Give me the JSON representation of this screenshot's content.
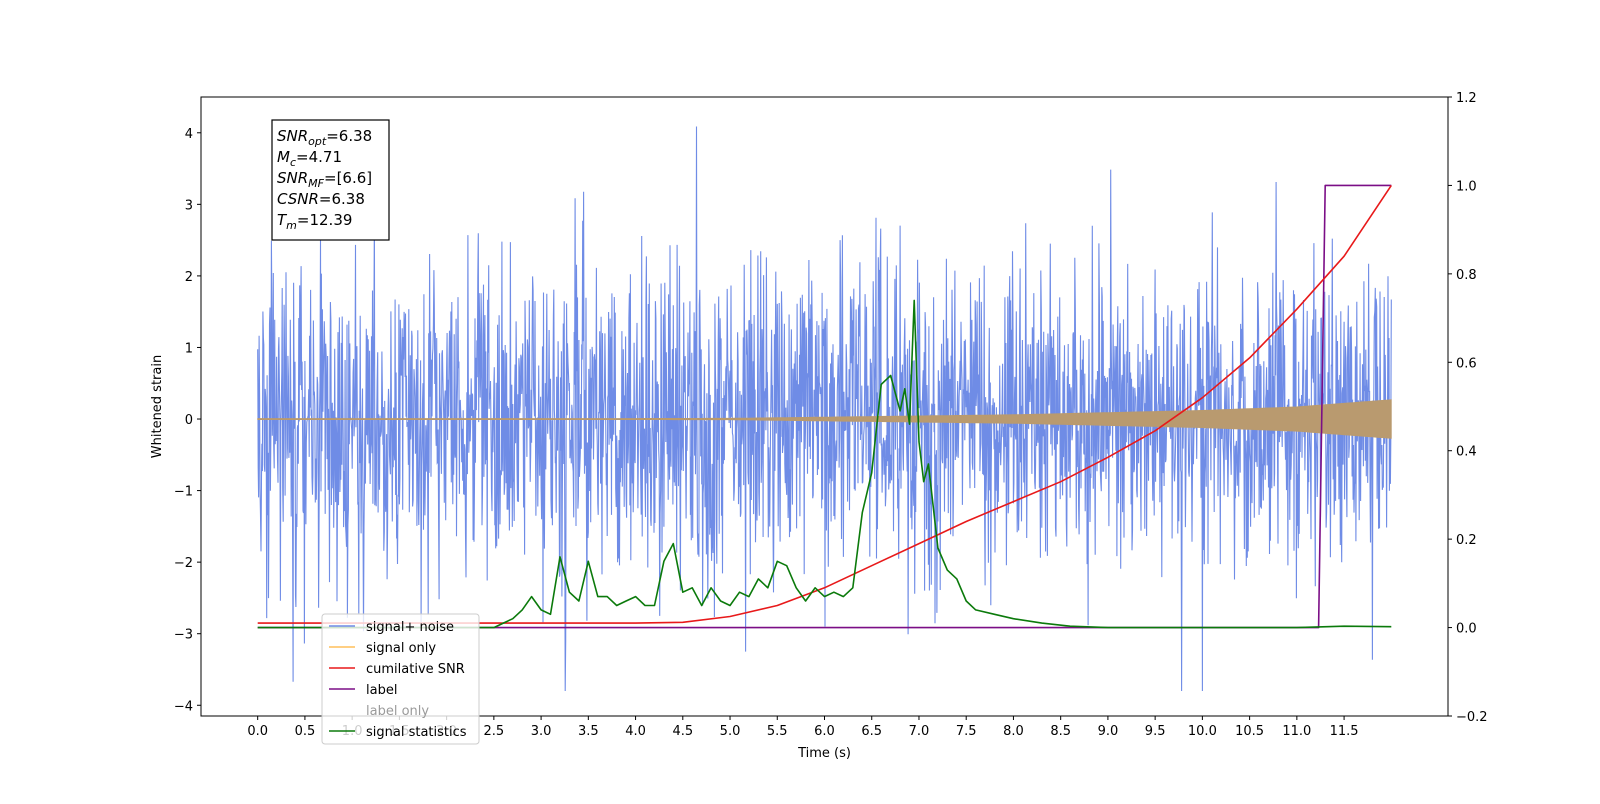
{
  "chart_data": {
    "type": "line",
    "title": "",
    "xlabel": "Time (s)",
    "ylabel": "Whitened strain",
    "y2label": "",
    "xlim": [
      -0.6,
      12.6
    ],
    "ylim": [
      -4.15,
      4.5
    ],
    "y2lim": [
      -0.2,
      1.2
    ],
    "x_ticks": [
      "0.0",
      "0.5",
      "1.0",
      "1.5",
      "2.0",
      "2.5",
      "3.0",
      "3.5",
      "4.0",
      "4.5",
      "5.0",
      "5.5",
      "6.0",
      "6.5",
      "7.0",
      "7.5",
      "8.0",
      "8.5",
      "9.0",
      "9.5",
      "10.0",
      "10.5",
      "11.0",
      "11.5"
    ],
    "y_ticks": [
      "4",
      "3",
      "2",
      "1",
      "0",
      "−1",
      "−2",
      "−3",
      "−4"
    ],
    "y2_ticks": [
      "1.2",
      "1.0",
      "0.8",
      "0.6",
      "0.4",
      "0.2",
      "0.0",
      "−0.2"
    ],
    "grid": false,
    "legend_position": "lower-left",
    "info_box": {
      "lines": [
        {
          "base": "SNR",
          "sub": "opt",
          "value": "=6.38"
        },
        {
          "base": "M",
          "sub": "c",
          "value": "=4.71"
        },
        {
          "base": "SNR",
          "sub": "MF",
          "value": "=[6.6]"
        },
        {
          "base": "CSNR",
          "sub": "",
          "value": "=6.38"
        },
        {
          "base": "T",
          "sub": "m",
          "value": "=12.39"
        }
      ]
    },
    "legend": [
      {
        "key": "signal_noise",
        "label": "signal+ noise",
        "color": "#6f8ce6"
      },
      {
        "key": "signal_only",
        "label": "signal only",
        "color": "#ffbf5a"
      },
      {
        "key": "cumulative_snr",
        "label": "cumilative SNR",
        "color": "#e8191a"
      },
      {
        "key": "label",
        "label": "label",
        "color": "#7b0e86"
      },
      {
        "key": "label_only",
        "label": "label only",
        "color": "#8a8a8a"
      },
      {
        "key": "signal_statistics",
        "label": "signal statistics",
        "color": "#0b7a0b"
      }
    ],
    "series": [
      {
        "name": "signal+ noise",
        "axis": "left",
        "color": "#6f8ce6",
        "t_range": [
          0.0,
          12.0
        ],
        "value_range": [
          -3.8,
          4.1
        ],
        "typical_range": [
          -2.5,
          2.5
        ]
      },
      {
        "name": "signal only",
        "axis": "left",
        "color": "#b99a6f",
        "t_range": [
          0.0,
          12.0
        ],
        "envelope": {
          "t": [
            0.0,
            5.0,
            8.0,
            10.0,
            11.0,
            12.0
          ],
          "amp": [
            0.0,
            0.01,
            0.06,
            0.12,
            0.17,
            0.27
          ]
        }
      },
      {
        "name": "cumilative SNR",
        "axis": "right",
        "color": "#e8191a",
        "x": [
          0.0,
          2.0,
          4.0,
          4.5,
          5.0,
          5.5,
          6.0,
          6.5,
          7.0,
          7.5,
          8.0,
          8.5,
          9.0,
          9.5,
          10.0,
          10.5,
          11.0,
          11.5,
          12.0
        ],
        "y": [
          0.01,
          0.01,
          0.01,
          0.012,
          0.025,
          0.05,
          0.09,
          0.14,
          0.19,
          0.24,
          0.285,
          0.33,
          0.385,
          0.445,
          0.52,
          0.61,
          0.72,
          0.84,
          1.0
        ]
      },
      {
        "name": "label",
        "axis": "right",
        "color": "#7b0e86",
        "x": [
          0.0,
          11.23,
          11.3,
          12.0
        ],
        "y": [
          0.0,
          0.0,
          1.0,
          1.0
        ]
      },
      {
        "name": "signal statistics",
        "axis": "right",
        "color": "#0b7a0b",
        "x": [
          0.0,
          2.3,
          2.5,
          2.6,
          2.7,
          2.8,
          2.9,
          3.0,
          3.1,
          3.2,
          3.3,
          3.4,
          3.5,
          3.6,
          3.7,
          3.8,
          3.9,
          4.0,
          4.1,
          4.2,
          4.3,
          4.4,
          4.5,
          4.6,
          4.7,
          4.8,
          4.9,
          5.0,
          5.1,
          5.2,
          5.3,
          5.4,
          5.5,
          5.6,
          5.7,
          5.8,
          5.9,
          6.0,
          6.1,
          6.2,
          6.3,
          6.4,
          6.5,
          6.6,
          6.7,
          6.8,
          6.85,
          6.9,
          6.95,
          7.0,
          7.05,
          7.1,
          7.2,
          7.3,
          7.4,
          7.5,
          7.6,
          7.8,
          8.0,
          8.3,
          8.6,
          9.0,
          10.0,
          11.0,
          11.5,
          12.0
        ],
        "y": [
          0.0,
          0.0,
          0.0,
          0.01,
          0.02,
          0.04,
          0.07,
          0.04,
          0.03,
          0.16,
          0.08,
          0.06,
          0.15,
          0.07,
          0.07,
          0.05,
          0.06,
          0.07,
          0.05,
          0.05,
          0.15,
          0.19,
          0.08,
          0.09,
          0.05,
          0.09,
          0.06,
          0.05,
          0.08,
          0.07,
          0.11,
          0.09,
          0.15,
          0.14,
          0.09,
          0.06,
          0.09,
          0.07,
          0.08,
          0.07,
          0.09,
          0.26,
          0.35,
          0.55,
          0.57,
          0.49,
          0.54,
          0.46,
          0.74,
          0.42,
          0.33,
          0.37,
          0.18,
          0.13,
          0.11,
          0.06,
          0.04,
          0.03,
          0.02,
          0.01,
          0.003,
          0.0,
          0.0,
          0.0,
          0.003,
          0.002
        ]
      }
    ]
  }
}
